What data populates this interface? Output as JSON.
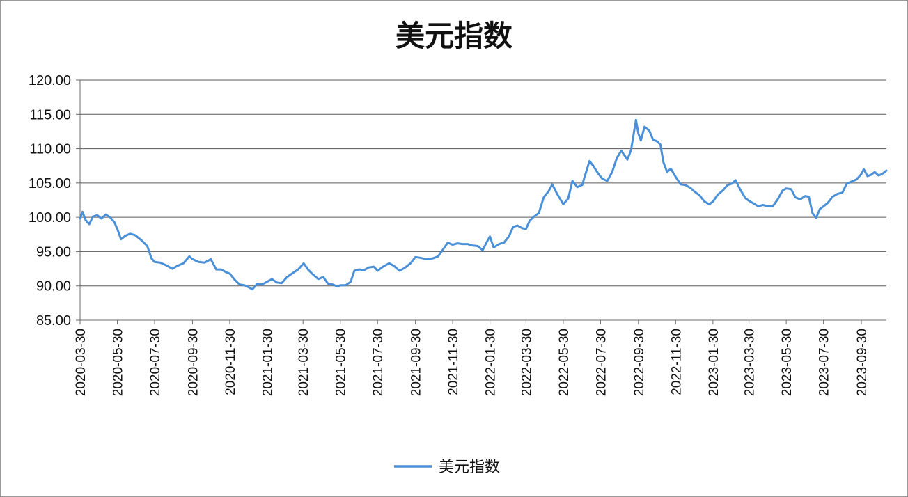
{
  "chart_data": {
    "type": "line",
    "title": "美元指数",
    "xlabel": "",
    "ylabel": "",
    "ylim": [
      85,
      120
    ],
    "yticks": [
      "85.00",
      "90.00",
      "95.00",
      "100.00",
      "105.00",
      "110.00",
      "115.00",
      "120.00"
    ],
    "xticks": [
      "2020-03-30",
      "2020-05-30",
      "2020-07-30",
      "2020-09-30",
      "2020-11-30",
      "2021-01-30",
      "2021-03-30",
      "2021-05-30",
      "2021-07-30",
      "2021-09-30",
      "2021-11-30",
      "2022-01-30",
      "2022-03-30",
      "2022-05-30",
      "2022-07-30",
      "2022-09-30",
      "2022-11-30",
      "2023-01-30",
      "2023-03-30",
      "2023-05-30",
      "2023-07-30",
      "2023-09-30"
    ],
    "x_range": [
      "2020-03-30",
      "2023-11-10"
    ],
    "grid": true,
    "legend_position": "bottom-center",
    "series": [
      {
        "name": "美元指数",
        "color": "#4a90d9",
        "points": [
          [
            "2020-03-30",
            99.8
          ],
          [
            "2020-04-03",
            100.8
          ],
          [
            "2020-04-08",
            99.6
          ],
          [
            "2020-04-14",
            99.0
          ],
          [
            "2020-04-20",
            100.1
          ],
          [
            "2020-04-27",
            100.3
          ],
          [
            "2020-05-04",
            99.8
          ],
          [
            "2020-05-11",
            100.4
          ],
          [
            "2020-05-18",
            100.0
          ],
          [
            "2020-05-25",
            99.3
          ],
          [
            "2020-05-30",
            98.3
          ],
          [
            "2020-06-05",
            96.8
          ],
          [
            "2020-06-12",
            97.3
          ],
          [
            "2020-06-20",
            97.6
          ],
          [
            "2020-06-28",
            97.4
          ],
          [
            "2020-07-08",
            96.7
          ],
          [
            "2020-07-18",
            95.8
          ],
          [
            "2020-07-25",
            94.0
          ],
          [
            "2020-07-30",
            93.5
          ],
          [
            "2020-08-08",
            93.4
          ],
          [
            "2020-08-18",
            93.0
          ],
          [
            "2020-08-28",
            92.5
          ],
          [
            "2020-09-05",
            92.9
          ],
          [
            "2020-09-15",
            93.3
          ],
          [
            "2020-09-25",
            94.3
          ],
          [
            "2020-09-30",
            93.9
          ],
          [
            "2020-10-10",
            93.5
          ],
          [
            "2020-10-20",
            93.4
          ],
          [
            "2020-10-30",
            93.9
          ],
          [
            "2020-11-08",
            92.4
          ],
          [
            "2020-11-16",
            92.4
          ],
          [
            "2020-11-24",
            92.0
          ],
          [
            "2020-11-30",
            91.8
          ],
          [
            "2020-12-08",
            90.9
          ],
          [
            "2020-12-16",
            90.2
          ],
          [
            "2020-12-24",
            90.1
          ],
          [
            "2020-12-31",
            89.8
          ],
          [
            "2021-01-06",
            89.5
          ],
          [
            "2021-01-14",
            90.3
          ],
          [
            "2021-01-22",
            90.2
          ],
          [
            "2021-01-30",
            90.6
          ],
          [
            "2021-02-07",
            91.0
          ],
          [
            "2021-02-15",
            90.5
          ],
          [
            "2021-02-23",
            90.4
          ],
          [
            "2021-03-04",
            91.3
          ],
          [
            "2021-03-12",
            91.8
          ],
          [
            "2021-03-22",
            92.4
          ],
          [
            "2021-03-31",
            93.3
          ],
          [
            "2021-04-08",
            92.3
          ],
          [
            "2021-04-16",
            91.6
          ],
          [
            "2021-04-24",
            91.0
          ],
          [
            "2021-05-02",
            91.3
          ],
          [
            "2021-05-10",
            90.3
          ],
          [
            "2021-05-18",
            90.2
          ],
          [
            "2021-05-25",
            89.9
          ],
          [
            "2021-05-30",
            90.1
          ],
          [
            "2021-06-08",
            90.1
          ],
          [
            "2021-06-16",
            90.6
          ],
          [
            "2021-06-22",
            92.2
          ],
          [
            "2021-06-30",
            92.4
          ],
          [
            "2021-07-08",
            92.3
          ],
          [
            "2021-07-16",
            92.7
          ],
          [
            "2021-07-24",
            92.8
          ],
          [
            "2021-07-30",
            92.2
          ],
          [
            "2021-08-08",
            92.8
          ],
          [
            "2021-08-18",
            93.3
          ],
          [
            "2021-08-26",
            92.9
          ],
          [
            "2021-09-04",
            92.2
          ],
          [
            "2021-09-12",
            92.6
          ],
          [
            "2021-09-22",
            93.3
          ],
          [
            "2021-09-30",
            94.2
          ],
          [
            "2021-10-08",
            94.1
          ],
          [
            "2021-10-18",
            93.9
          ],
          [
            "2021-10-28",
            94.0
          ],
          [
            "2021-11-06",
            94.3
          ],
          [
            "2021-11-14",
            95.3
          ],
          [
            "2021-11-22",
            96.3
          ],
          [
            "2021-11-30",
            96.0
          ],
          [
            "2021-12-08",
            96.2
          ],
          [
            "2021-12-16",
            96.1
          ],
          [
            "2021-12-24",
            96.1
          ],
          [
            "2022-01-01",
            95.9
          ],
          [
            "2022-01-10",
            95.8
          ],
          [
            "2022-01-18",
            95.2
          ],
          [
            "2022-01-26",
            96.6
          ],
          [
            "2022-01-30",
            97.2
          ],
          [
            "2022-02-05",
            95.6
          ],
          [
            "2022-02-14",
            96.1
          ],
          [
            "2022-02-22",
            96.3
          ],
          [
            "2022-03-02",
            97.2
          ],
          [
            "2022-03-09",
            98.6
          ],
          [
            "2022-03-16",
            98.8
          ],
          [
            "2022-03-24",
            98.4
          ],
          [
            "2022-03-30",
            98.3
          ],
          [
            "2022-04-05",
            99.5
          ],
          [
            "2022-04-12",
            100.1
          ],
          [
            "2022-04-20",
            100.6
          ],
          [
            "2022-04-28",
            102.9
          ],
          [
            "2022-05-06",
            103.8
          ],
          [
            "2022-05-12",
            104.8
          ],
          [
            "2022-05-20",
            103.4
          ],
          [
            "2022-05-30",
            101.9
          ],
          [
            "2022-06-07",
            102.7
          ],
          [
            "2022-06-14",
            105.3
          ],
          [
            "2022-06-22",
            104.4
          ],
          [
            "2022-06-30",
            104.7
          ],
          [
            "2022-07-06",
            106.5
          ],
          [
            "2022-07-12",
            108.2
          ],
          [
            "2022-07-18",
            107.5
          ],
          [
            "2022-07-26",
            106.4
          ],
          [
            "2022-08-02",
            105.6
          ],
          [
            "2022-08-10",
            105.3
          ],
          [
            "2022-08-18",
            106.6
          ],
          [
            "2022-08-26",
            108.7
          ],
          [
            "2022-09-02",
            109.7
          ],
          [
            "2022-09-12",
            108.4
          ],
          [
            "2022-09-18",
            109.8
          ],
          [
            "2022-09-26",
            114.2
          ],
          [
            "2022-09-30",
            112.2
          ],
          [
            "2022-10-04",
            111.2
          ],
          [
            "2022-10-10",
            113.2
          ],
          [
            "2022-10-18",
            112.6
          ],
          [
            "2022-10-24",
            111.3
          ],
          [
            "2022-10-30",
            111.1
          ],
          [
            "2022-11-05",
            110.6
          ],
          [
            "2022-11-10",
            108.0
          ],
          [
            "2022-11-16",
            106.6
          ],
          [
            "2022-11-22",
            107.1
          ],
          [
            "2022-11-30",
            105.9
          ],
          [
            "2022-12-08",
            104.8
          ],
          [
            "2022-12-16",
            104.7
          ],
          [
            "2022-12-24",
            104.3
          ],
          [
            "2022-12-30",
            103.8
          ],
          [
            "2023-01-08",
            103.2
          ],
          [
            "2023-01-16",
            102.3
          ],
          [
            "2023-01-24",
            101.9
          ],
          [
            "2023-01-30",
            102.3
          ],
          [
            "2023-02-07",
            103.3
          ],
          [
            "2023-02-15",
            103.9
          ],
          [
            "2023-02-23",
            104.7
          ],
          [
            "2023-03-02",
            104.9
          ],
          [
            "2023-03-08",
            105.4
          ],
          [
            "2023-03-16",
            104.0
          ],
          [
            "2023-03-24",
            102.8
          ],
          [
            "2023-03-30",
            102.4
          ],
          [
            "2023-04-07",
            102.0
          ],
          [
            "2023-04-14",
            101.6
          ],
          [
            "2023-04-22",
            101.8
          ],
          [
            "2023-04-30",
            101.6
          ],
          [
            "2023-05-08",
            101.6
          ],
          [
            "2023-05-16",
            102.6
          ],
          [
            "2023-05-24",
            103.9
          ],
          [
            "2023-05-30",
            104.2
          ],
          [
            "2023-06-07",
            104.1
          ],
          [
            "2023-06-14",
            102.9
          ],
          [
            "2023-06-22",
            102.6
          ],
          [
            "2023-06-30",
            103.1
          ],
          [
            "2023-07-06",
            103.0
          ],
          [
            "2023-07-12",
            100.6
          ],
          [
            "2023-07-18",
            99.9
          ],
          [
            "2023-07-24",
            101.2
          ],
          [
            "2023-07-30",
            101.6
          ],
          [
            "2023-08-06",
            102.1
          ],
          [
            "2023-08-14",
            103.0
          ],
          [
            "2023-08-22",
            103.4
          ],
          [
            "2023-08-30",
            103.6
          ],
          [
            "2023-09-06",
            104.9
          ],
          [
            "2023-09-14",
            105.2
          ],
          [
            "2023-09-22",
            105.5
          ],
          [
            "2023-09-30",
            106.3
          ],
          [
            "2023-10-04",
            107.0
          ],
          [
            "2023-10-10",
            106.0
          ],
          [
            "2023-10-16",
            106.2
          ],
          [
            "2023-10-22",
            106.6
          ],
          [
            "2023-10-28",
            106.1
          ],
          [
            "2023-11-03",
            106.3
          ],
          [
            "2023-11-10",
            106.8
          ]
        ]
      }
    ]
  }
}
